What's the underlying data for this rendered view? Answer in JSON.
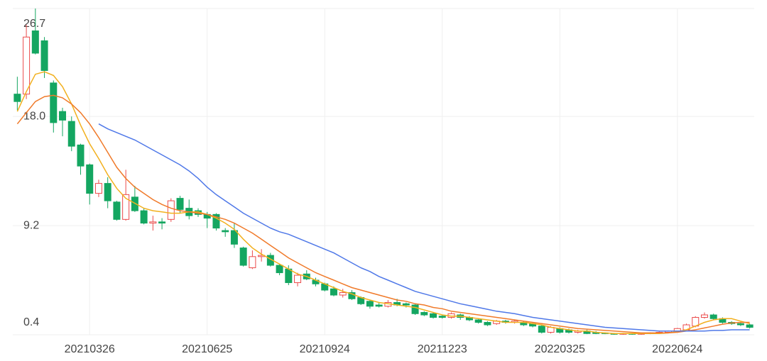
{
  "chart_data": {
    "type": "candlestick",
    "categories": [
      null,
      null,
      null,
      null,
      null,
      null,
      null,
      null,
      "20210326",
      null,
      null,
      null,
      null,
      null,
      null,
      null,
      null,
      null,
      null,
      null,
      null,
      "20210625",
      null,
      null,
      null,
      null,
      null,
      null,
      null,
      null,
      null,
      null,
      null,
      null,
      "20210924",
      null,
      null,
      null,
      null,
      null,
      null,
      null,
      null,
      null,
      null,
      null,
      null,
      "20211223",
      null,
      null,
      null,
      null,
      null,
      null,
      null,
      null,
      null,
      null,
      null,
      null,
      "20220325",
      null,
      null,
      null,
      null,
      null,
      null,
      null,
      null,
      null,
      null,
      null,
      null,
      "20220624",
      null,
      null,
      null,
      null,
      null,
      null,
      null,
      null
    ],
    "open": [
      19.8,
      19.8,
      24.9,
      24.1,
      20.7,
      18.4,
      17.6,
      15.7,
      14.1,
      11.8,
      12.6,
      11.1,
      9.7,
      11.5,
      10.4,
      9.4,
      9.5,
      9.7,
      11.4,
      10.6,
      10.4,
      10.1,
      10.1,
      8.8,
      8.8,
      7.4,
      5.8,
      6.7,
      6.8,
      6.0,
      5.7,
      4.6,
      5.3,
      4.8,
      4.5,
      4.1,
      3.6,
      3.8,
      3.4,
      3.1,
      2.8,
      2.7,
      3.0,
      2.9,
      2.8,
      2.2,
      2.1,
      1.9,
      1.8,
      2.0,
      1.8,
      1.6,
      1.4,
      1.3,
      1.5,
      1.4,
      1.4,
      1.3,
      1.1,
      0.6,
      0.9,
      0.8,
      0.6,
      0.7,
      0.6,
      0.55,
      0.5,
      0.45,
      0.5,
      0.45,
      0.5,
      0.55,
      0.6,
      0.7,
      0.8,
      1.1,
      1.8,
      2.0,
      1.7,
      1.4,
      1.3,
      1.2
    ],
    "high": [
      21.2,
      25.4,
      26.7,
      24.4,
      20.9,
      18.7,
      18.0,
      15.8,
      14.2,
      12.9,
      13.1,
      11.2,
      13.7,
      12.4,
      10.6,
      10.0,
      9.8,
      11.4,
      11.6,
      11.3,
      10.6,
      10.3,
      10.2,
      9.0,
      9.4,
      7.5,
      7.2,
      7.3,
      7.0,
      6.1,
      6.0,
      5.4,
      5.6,
      5.0,
      4.6,
      4.3,
      4.1,
      4.0,
      3.5,
      3.2,
      3.0,
      3.2,
      3.3,
      3.0,
      2.9,
      2.3,
      2.2,
      2.0,
      2.2,
      2.1,
      1.9,
      1.7,
      1.5,
      1.6,
      1.6,
      1.6,
      1.5,
      1.4,
      1.2,
      1.1,
      1.0,
      0.9,
      0.8,
      0.8,
      0.7,
      0.6,
      0.55,
      0.55,
      0.55,
      0.55,
      0.6,
      0.65,
      0.75,
      0.95,
      1.3,
      1.9,
      2.2,
      2.1,
      1.8,
      1.5,
      1.4,
      1.3
    ],
    "low": [
      18.5,
      19.4,
      23.0,
      21.1,
      16.7,
      16.4,
      15.2,
      13.3,
      10.9,
      11.5,
      10.6,
      9.6,
      9.6,
      10.3,
      9.3,
      8.8,
      8.9,
      9.5,
      10.2,
      9.7,
      9.9,
      9.0,
      8.8,
      8.3,
      7.4,
      5.9,
      5.7,
      6.3,
      5.9,
      5.2,
      4.4,
      4.3,
      4.8,
      4.3,
      3.9,
      3.5,
      3.4,
      3.2,
      2.8,
      2.5,
      2.6,
      2.6,
      2.7,
      2.6,
      2.0,
      1.9,
      1.7,
      1.7,
      1.7,
      1.6,
      1.5,
      1.3,
      1.1,
      1.2,
      1.3,
      1.3,
      1.1,
      1.0,
      0.5,
      0.5,
      0.5,
      0.5,
      0.5,
      0.45,
      0.45,
      0.45,
      0.4,
      0.4,
      0.4,
      0.4,
      0.45,
      0.5,
      0.55,
      0.65,
      0.75,
      1.0,
      1.7,
      1.6,
      1.3,
      1.2,
      1.1,
      0.9
    ],
    "close": [
      19.2,
      24.4,
      23.1,
      21.7,
      17.5,
      17.7,
      15.6,
      14.0,
      11.8,
      12.6,
      11.2,
      9.7,
      11.7,
      10.4,
      9.4,
      9.5,
      9.4,
      11.2,
      10.5,
      10.0,
      10.1,
      9.8,
      9.0,
      8.7,
      7.7,
      6.0,
      6.7,
      6.8,
      6.0,
      5.4,
      4.6,
      5.2,
      4.9,
      4.5,
      4.0,
      3.6,
      3.8,
      3.3,
      2.9,
      2.7,
      2.7,
      3.0,
      2.8,
      2.8,
      2.1,
      2.0,
      1.8,
      1.8,
      2.1,
      1.8,
      1.6,
      1.4,
      1.2,
      1.5,
      1.4,
      1.5,
      1.2,
      1.1,
      0.6,
      1.0,
      0.6,
      0.6,
      0.7,
      0.5,
      0.5,
      0.5,
      0.45,
      0.5,
      0.45,
      0.5,
      0.55,
      0.6,
      0.7,
      0.9,
      1.2,
      1.8,
      2.0,
      1.7,
      1.4,
      1.3,
      1.2,
      1.0
    ],
    "up_color": "#eb4b4b",
    "down_color": "#14a661",
    "lines": [
      {
        "color": "#f2b01e",
        "values": [
          18.4,
          20.0,
          21.4,
          21.6,
          21.3,
          20.4,
          19.0,
          17.3,
          15.8,
          14.6,
          13.3,
          12.2,
          11.4,
          11.0,
          10.6,
          10.4,
          10.3,
          10.2,
          10.2,
          10.3,
          10.3,
          10.1,
          9.8,
          9.4,
          8.9,
          8.1,
          7.4,
          6.9,
          6.5,
          6.1,
          5.7,
          5.3,
          5.1,
          4.8,
          4.5,
          4.2,
          3.9,
          3.7,
          3.4,
          3.2,
          3.0,
          2.9,
          2.8,
          2.7,
          2.6,
          2.4,
          2.2,
          2.0,
          1.9,
          1.9,
          1.8,
          1.7,
          1.6,
          1.5,
          1.4,
          1.4,
          1.4,
          1.3,
          1.2,
          1.0,
          0.9,
          0.8,
          0.7,
          0.7,
          0.6,
          0.55,
          0.5,
          0.5,
          0.5,
          0.5,
          0.5,
          0.5,
          0.55,
          0.65,
          0.8,
          1.1,
          1.4,
          1.6,
          1.7,
          1.7,
          1.5,
          1.3
        ]
      },
      {
        "color": "#f07a2a",
        "values": [
          17.4,
          18.3,
          19.2,
          19.6,
          19.7,
          19.5,
          19.0,
          18.3,
          17.4,
          16.3,
          15.1,
          13.9,
          13.0,
          12.3,
          11.8,
          11.3,
          10.9,
          10.6,
          10.4,
          10.3,
          10.2,
          10.1,
          9.9,
          9.7,
          9.4,
          9.0,
          8.6,
          8.1,
          7.6,
          7.1,
          6.6,
          6.2,
          5.8,
          5.4,
          5.1,
          4.8,
          4.5,
          4.2,
          4.0,
          3.8,
          3.6,
          3.4,
          3.2,
          3.1,
          2.9,
          2.8,
          2.6,
          2.5,
          2.3,
          2.2,
          2.1,
          2.0,
          1.9,
          1.8,
          1.7,
          1.6,
          1.5,
          1.4,
          1.3,
          1.2,
          1.1,
          1.0,
          0.9,
          0.85,
          0.8,
          0.75,
          0.7,
          0.65,
          0.6,
          0.55,
          0.55,
          0.55,
          0.55,
          0.6,
          0.7,
          0.8,
          0.95,
          1.1,
          1.25,
          1.35,
          1.4,
          1.4
        ]
      },
      {
        "color": "#4f78e8",
        "values": [
          null,
          null,
          null,
          null,
          null,
          null,
          null,
          null,
          null,
          17.4,
          17.0,
          16.7,
          16.4,
          16.1,
          15.7,
          15.3,
          14.9,
          14.5,
          14.1,
          13.6,
          13.0,
          12.3,
          11.7,
          11.2,
          10.7,
          10.2,
          9.8,
          9.4,
          9.0,
          8.7,
          8.5,
          8.2,
          7.9,
          7.6,
          7.3,
          7.0,
          6.6,
          6.2,
          5.8,
          5.5,
          5.1,
          4.8,
          4.5,
          4.2,
          3.9,
          3.7,
          3.5,
          3.3,
          3.1,
          2.9,
          2.75,
          2.6,
          2.45,
          2.3,
          2.2,
          2.1,
          1.95,
          1.8,
          1.7,
          1.6,
          1.5,
          1.4,
          1.3,
          1.2,
          1.1,
          1.0,
          0.95,
          0.9,
          0.85,
          0.8,
          0.75,
          0.7,
          0.7,
          0.7,
          0.7,
          0.7,
          0.7,
          0.75,
          0.75,
          0.8,
          0.8,
          0.8
        ]
      }
    ],
    "ylim": [
      0.4,
      26.7
    ],
    "yticks": [
      0.4,
      9.2,
      {
        "value": 18,
        "label": "18.0"
      },
      26.7
    ],
    "grid": true
  }
}
